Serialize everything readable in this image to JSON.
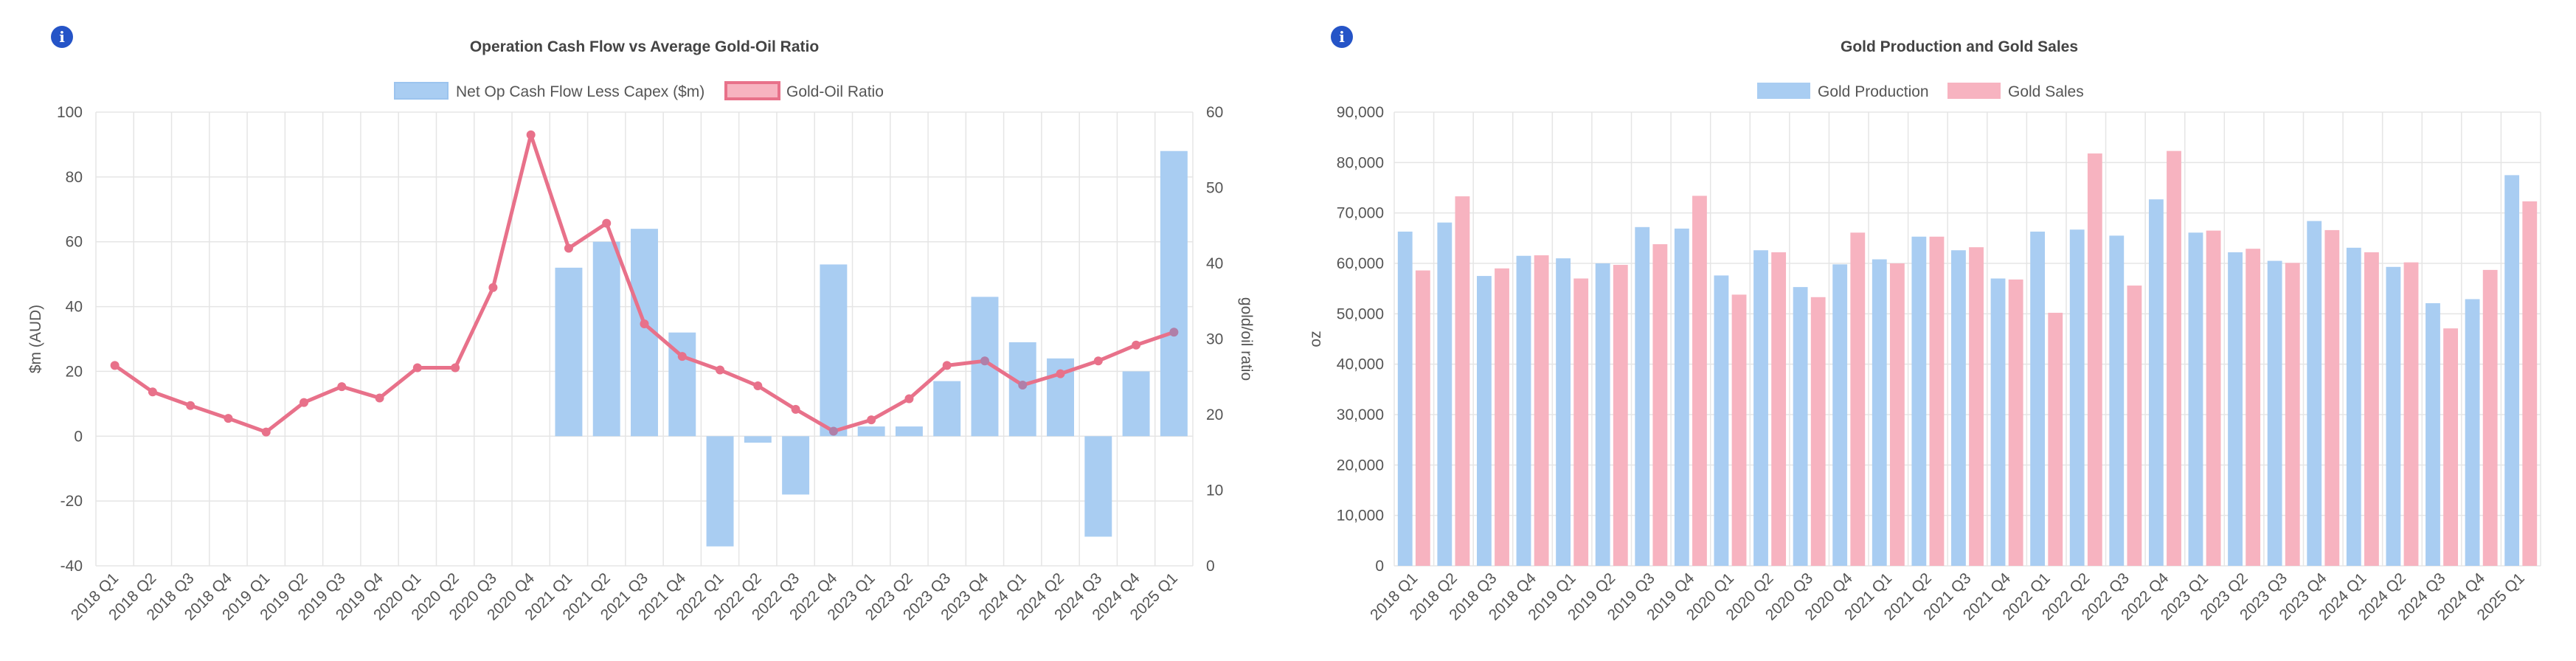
{
  "panels": {
    "left_info_icon": "info-icon",
    "right_info_icon": "info-icon"
  },
  "colors": {
    "bar_blue": "#a9cdf2",
    "bar_pink": "#f7b3c0",
    "line_pink": "#e8718a",
    "legend_blue_border": "#9cc4ee",
    "legend_pink_border": "#e8718a",
    "grid": "#e5e5e5",
    "text": "#555555",
    "title": "#444444"
  },
  "chart_data": [
    {
      "type": "bar+line",
      "title": "Operation Cash Flow vs Average Gold-Oil Ratio",
      "ylabel": "$m (AUD)",
      "y2label": "gold/oil ratio",
      "ylim": [
        -40,
        100
      ],
      "yticks": [
        -40,
        -20,
        0,
        20,
        40,
        60,
        80,
        100
      ],
      "y2lim": [
        0,
        60
      ],
      "y2ticks": [
        0,
        10,
        20,
        30,
        40,
        50,
        60
      ],
      "legend_position": "top-center",
      "grid": true,
      "categories": [
        "2018 Q1",
        "2018 Q2",
        "2018 Q3",
        "2018 Q4",
        "2019 Q1",
        "2019 Q2",
        "2019 Q3",
        "2019 Q4",
        "2020 Q1",
        "2020 Q2",
        "2020 Q3",
        "2020 Q4",
        "2021 Q1",
        "2021 Q2",
        "2021 Q3",
        "2021 Q4",
        "2022 Q1",
        "2022 Q2",
        "2022 Q3",
        "2022 Q4",
        "2023 Q1",
        "2023 Q2",
        "2023 Q3",
        "2023 Q4",
        "2024 Q1",
        "2024 Q2",
        "2024 Q3",
        "2024 Q4",
        "2025 Q1"
      ],
      "series": [
        {
          "name": "Net Op Cash Flow Less Capex ($m)",
          "kind": "bar",
          "axis": "left",
          "values": [
            null,
            null,
            null,
            null,
            null,
            null,
            null,
            null,
            null,
            null,
            null,
            null,
            52,
            60,
            64,
            32,
            -34,
            -2,
            -18,
            53,
            3,
            3,
            17,
            43,
            29,
            24,
            -31,
            20,
            88
          ]
        },
        {
          "name": "Gold-Oil Ratio",
          "kind": "line",
          "axis": "right",
          "values": [
            26.5,
            23,
            21.2,
            19.5,
            17.7,
            21.6,
            23.7,
            22.2,
            26.2,
            26.2,
            36.8,
            57,
            42,
            45.3,
            32,
            27.7,
            25.9,
            23.8,
            20.7,
            17.8,
            19.3,
            22.1,
            26.5,
            27.1,
            23.9,
            25.4,
            27.1,
            29.2,
            30.9
          ]
        }
      ]
    },
    {
      "type": "bar",
      "title": "Gold Production and Gold Sales",
      "ylabel": "oz",
      "ylim": [
        0,
        90000
      ],
      "yticks": [
        "0",
        "10,000",
        "20,000",
        "30,000",
        "40,000",
        "50,000",
        "60,000",
        "70,000",
        "80,000",
        "90,000"
      ],
      "legend_position": "top-center",
      "grid": true,
      "categories": [
        "2018 Q1",
        "2018 Q2",
        "2018 Q3",
        "2018 Q4",
        "2019 Q1",
        "2019 Q2",
        "2019 Q3",
        "2019 Q4",
        "2020 Q1",
        "2020 Q2",
        "2020 Q3",
        "2020 Q4",
        "2021 Q1",
        "2021 Q2",
        "2021 Q3",
        "2021 Q4",
        "2022 Q1",
        "2022 Q2",
        "2022 Q3",
        "2022 Q4",
        "2023 Q1",
        "2023 Q2",
        "2023 Q3",
        "2023 Q4",
        "2024 Q1",
        "2024 Q2",
        "2024 Q3",
        "2024 Q4",
        "2025 Q1"
      ],
      "series": [
        {
          "name": "Gold Production",
          "values": [
            66300,
            68100,
            57500,
            61500,
            61000,
            60000,
            67200,
            66900,
            57600,
            62600,
            55300,
            59800,
            60800,
            65300,
            62600,
            57000,
            66300,
            66700,
            65500,
            72700,
            66100,
            62200,
            60500,
            68400,
            63100,
            59300,
            52100,
            52900,
            77500
          ]
        },
        {
          "name": "Gold Sales",
          "values": [
            58600,
            73300,
            59000,
            61600,
            57000,
            59700,
            63800,
            73400,
            53800,
            62200,
            53300,
            66100,
            60000,
            65300,
            63200,
            56800,
            50200,
            81800,
            55600,
            82300,
            66500,
            62900,
            60100,
            66600,
            62200,
            60200,
            47100,
            58700,
            72300
          ]
        }
      ]
    }
  ]
}
